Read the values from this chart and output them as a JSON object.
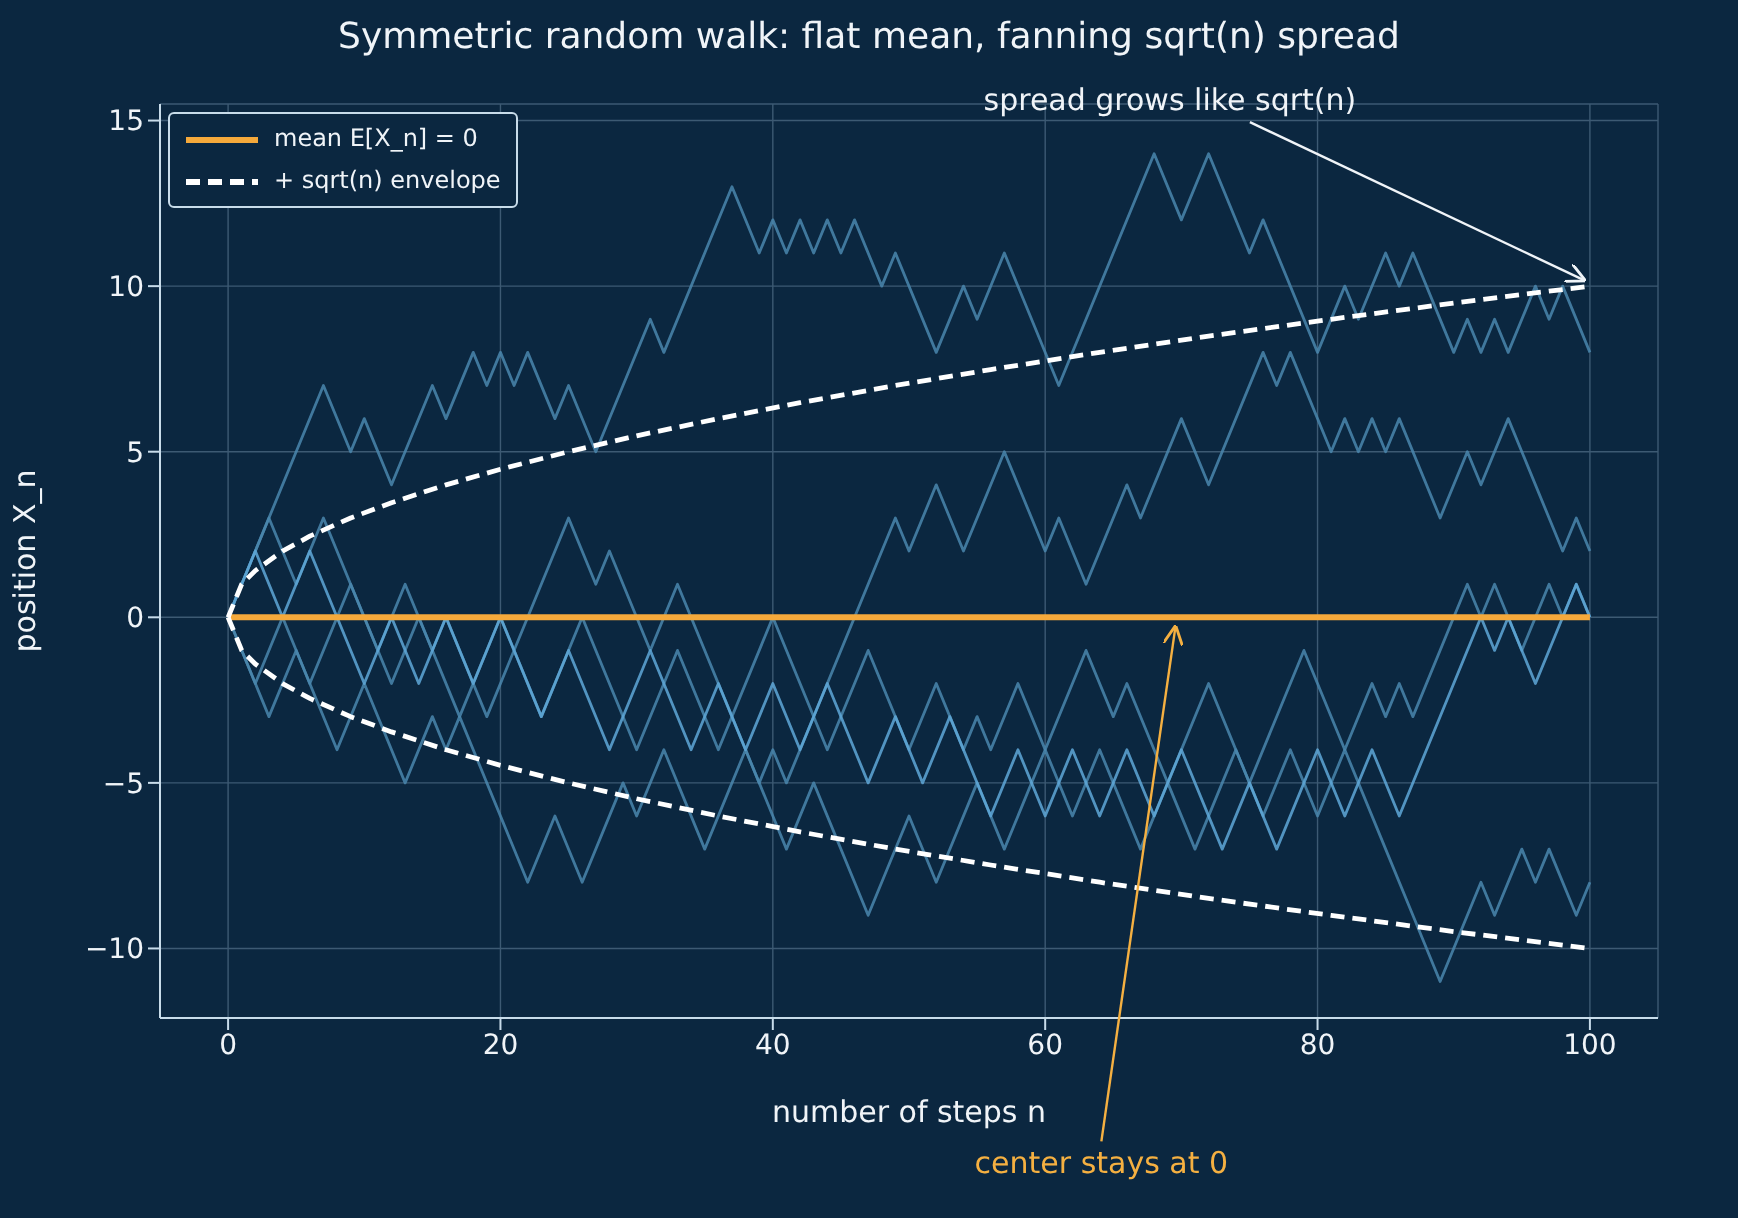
{
  "chart_data": {
    "type": "line",
    "title": "Symmetric random walk: flat mean, fanning sqrt(n) spread",
    "xlabel": "number of steps  n",
    "ylabel": "position  X_n",
    "xlim": [
      -5,
      105
    ],
    "xticks": [
      0,
      20,
      40,
      60,
      80,
      100
    ],
    "ylim": [
      -12.1,
      15.5
    ],
    "yticks": [
      {
        "value": -10,
        "label": "−10"
      },
      {
        "value": -5,
        "label": "−5"
      },
      0,
      5,
      10,
      15
    ],
    "grid": true,
    "legend": "top left",
    "marker": "none",
    "series": [
      {
        "color": "#4a87ae",
        "line_style": "solid",
        "x": [
          0,
          7,
          9,
          10,
          12,
          15,
          16,
          18,
          19,
          20,
          21,
          22,
          24,
          25,
          27,
          31,
          32,
          37,
          39,
          40,
          41,
          42,
          43,
          44,
          45,
          46,
          48,
          49,
          52,
          54,
          55,
          57,
          61,
          68,
          70,
          72,
          75,
          76,
          80,
          82,
          83,
          85,
          86,
          87,
          90,
          91,
          92,
          93,
          94,
          96,
          97,
          98,
          100
        ],
        "values": [
          0,
          7,
          5,
          6,
          4,
          7,
          6,
          8,
          7,
          8,
          7,
          8,
          6,
          7,
          5,
          9,
          8,
          13,
          11,
          12,
          11,
          12,
          11,
          12,
          11,
          12,
          10,
          11,
          8,
          10,
          9,
          11,
          7,
          14,
          12,
          14,
          11,
          12,
          8,
          10,
          9,
          11,
          10,
          11,
          8,
          9,
          8,
          9,
          8,
          10,
          9,
          10,
          8
        ]
      },
      {
        "color": "#4a87ae",
        "line_style": "solid",
        "x": [
          0,
          3,
          5,
          7,
          11,
          13,
          15,
          16,
          19,
          25,
          27,
          28,
          31,
          33,
          39,
          40,
          41,
          49,
          50,
          52,
          54,
          57,
          60,
          61,
          63,
          66,
          67,
          70,
          72,
          76,
          77,
          78,
          81,
          82,
          83,
          84,
          85,
          86,
          89,
          91,
          92,
          94,
          98,
          99,
          100
        ],
        "values": [
          0,
          3,
          1,
          3,
          -1,
          1,
          -1,
          0,
          -3,
          3,
          1,
          2,
          -1,
          1,
          -5,
          -4,
          -5,
          3,
          2,
          4,
          2,
          5,
          2,
          3,
          1,
          4,
          3,
          6,
          4,
          8,
          7,
          8,
          5,
          6,
          5,
          6,
          5,
          6,
          3,
          5,
          4,
          6,
          2,
          3,
          2
        ]
      },
      {
        "color": "#4a87ae",
        "line_style": "solid",
        "x": [
          0,
          2,
          4,
          6,
          9,
          12,
          14,
          17,
          20,
          23,
          26,
          30,
          33,
          36,
          40,
          44,
          47,
          50,
          52,
          54,
          55,
          56,
          58,
          60,
          63,
          65,
          66,
          69,
          72,
          75,
          79,
          82,
          84,
          85,
          86,
          87,
          90,
          91,
          92,
          93,
          95,
          97,
          98,
          99,
          100
        ],
        "values": [
          0,
          -2,
          0,
          -2,
          1,
          -2,
          0,
          -3,
          0,
          -3,
          0,
          -4,
          -1,
          -4,
          0,
          -4,
          -1,
          -4,
          -2,
          -4,
          -3,
          -4,
          -2,
          -4,
          -1,
          -3,
          -2,
          -5,
          -2,
          -5,
          -1,
          -4,
          -2,
          -3,
          -2,
          -3,
          0,
          1,
          0,
          1,
          -1,
          1,
          0,
          1,
          0
        ]
      },
      {
        "color": "#4a87ae",
        "line_style": "solid",
        "x": [
          0,
          3,
          5,
          8,
          10,
          13,
          15,
          16,
          17,
          22,
          24,
          26,
          29,
          30,
          32,
          35,
          38,
          41,
          43,
          47,
          50,
          52,
          55,
          57,
          60,
          62,
          64,
          67,
          69,
          71,
          74,
          76,
          78,
          80,
          82,
          85,
          87,
          89,
          92,
          93,
          95,
          96,
          97,
          99,
          100
        ],
        "values": [
          0,
          -3,
          -1,
          -4,
          -2,
          -5,
          -3,
          -4,
          -3,
          -8,
          -6,
          -8,
          -5,
          -6,
          -4,
          -7,
          -4,
          -7,
          -5,
          -9,
          -6,
          -8,
          -5,
          -7,
          -4,
          -6,
          -4,
          -7,
          -5,
          -7,
          -4,
          -6,
          -4,
          -6,
          -4,
          -7,
          -9,
          -11,
          -8,
          -9,
          -7,
          -8,
          -7,
          -9,
          -8
        ]
      },
      {
        "color": "#5fa8d8",
        "line_style": "solid",
        "x": [
          0,
          2,
          4,
          6,
          10,
          12,
          14,
          16,
          18,
          20,
          23,
          25,
          28,
          31,
          34,
          36,
          38,
          40,
          42,
          44,
          47,
          49,
          51,
          53,
          56,
          58,
          60,
          62,
          64,
          66,
          68,
          70,
          73,
          75,
          77,
          80,
          82,
          84,
          86,
          92,
          93,
          94,
          96,
          98,
          99,
          100
        ],
        "values": [
          0,
          2,
          0,
          2,
          -2,
          0,
          -2,
          0,
          -2,
          0,
          -3,
          -1,
          -4,
          -1,
          -4,
          -2,
          -4,
          -2,
          -4,
          -2,
          -5,
          -3,
          -5,
          -3,
          -6,
          -4,
          -6,
          -4,
          -6,
          -4,
          -6,
          -4,
          -7,
          -5,
          -7,
          -4,
          -6,
          -4,
          -6,
          0,
          -1,
          0,
          -2,
          0,
          1,
          0
        ]
      },
      {
        "name": "mean E[X_n] = 0",
        "color": "#f5a93b",
        "line_style": "solid",
        "x": [
          0,
          100
        ],
        "values": [
          0,
          0
        ]
      },
      {
        "name": "+ sqrt(n) envelope",
        "color": "#ffffff",
        "line_style": "dashed",
        "x": [
          0,
          1,
          2,
          4,
          6,
          9,
          12,
          16,
          20,
          25,
          30,
          36,
          42,
          49,
          56,
          64,
          72,
          81,
          90,
          100
        ],
        "values": [
          0,
          1,
          1.41,
          2,
          2.45,
          3,
          3.46,
          4,
          4.47,
          5,
          5.48,
          6,
          6.48,
          7,
          7.48,
          8,
          8.49,
          9,
          9.49,
          10
        ]
      },
      {
        "color": "#ffffff",
        "line_style": "dashed",
        "x": [
          0,
          1,
          2,
          4,
          6,
          9,
          12,
          16,
          20,
          25,
          30,
          36,
          42,
          49,
          56,
          64,
          72,
          81,
          90,
          100
        ],
        "values": [
          0,
          -1,
          -1.41,
          -2,
          -2.45,
          -3,
          -3.46,
          -4,
          -4.47,
          -5,
          -5.48,
          -6,
          -6.48,
          -7,
          -7.48,
          -8,
          -8.49,
          -9,
          -9.49,
          -10
        ]
      }
    ],
    "annotations": [
      {
        "text": "spread grows like sqrt(n)",
        "x": 100,
        "y": 10
      },
      {
        "text": "center stays at 0",
        "x": 70,
        "y": 0
      }
    ]
  }
}
